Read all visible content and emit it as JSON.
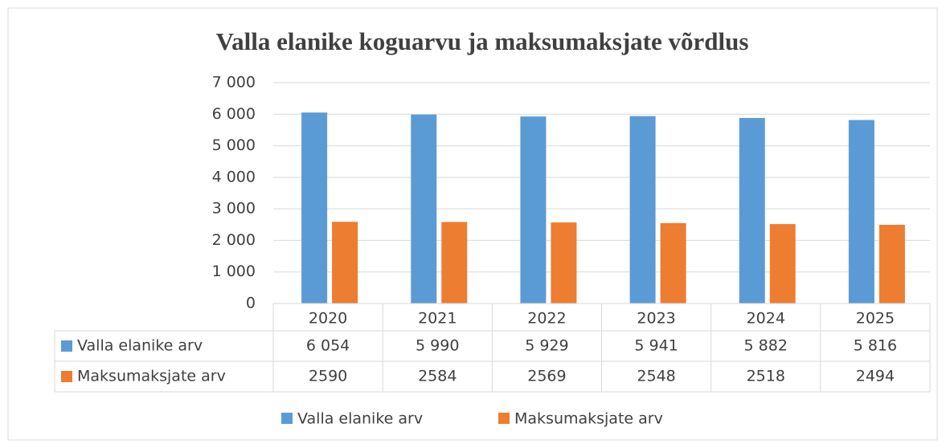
{
  "chart_data": {
    "type": "bar",
    "title": "Valla elanike koguarvu ja maksumaksjate võrdlus",
    "categories": [
      "2020",
      "2021",
      "2022",
      "2023",
      "2024",
      "2025"
    ],
    "series": [
      {
        "name": "Valla elanike arv",
        "color": "#5b9bd5",
        "values": [
          6054,
          5990,
          5929,
          5941,
          5882,
          5816
        ],
        "value_labels": [
          "6 054",
          "5 990",
          "5 929",
          "5 941",
          "5 882",
          "5 816"
        ]
      },
      {
        "name": "Maksumaksjate arv",
        "color": "#ed7d31",
        "values": [
          2590,
          2584,
          2569,
          2548,
          2518,
          2494
        ]
      }
    ],
    "ylim": [
      0,
      7000
    ],
    "yticks": [
      0,
      {
        "value": 1000,
        "label": "1 000"
      },
      {
        "value": 2000,
        "label": "2 000"
      },
      {
        "value": 3000,
        "label": "3 000"
      },
      {
        "value": 4000,
        "label": "4 000"
      },
      {
        "value": 5000,
        "label": "5 000"
      },
      {
        "value": 6000,
        "label": "6 000"
      },
      {
        "value": 7000,
        "label": "7 000"
      }
    ],
    "grid": true,
    "legend": "bottom"
  }
}
